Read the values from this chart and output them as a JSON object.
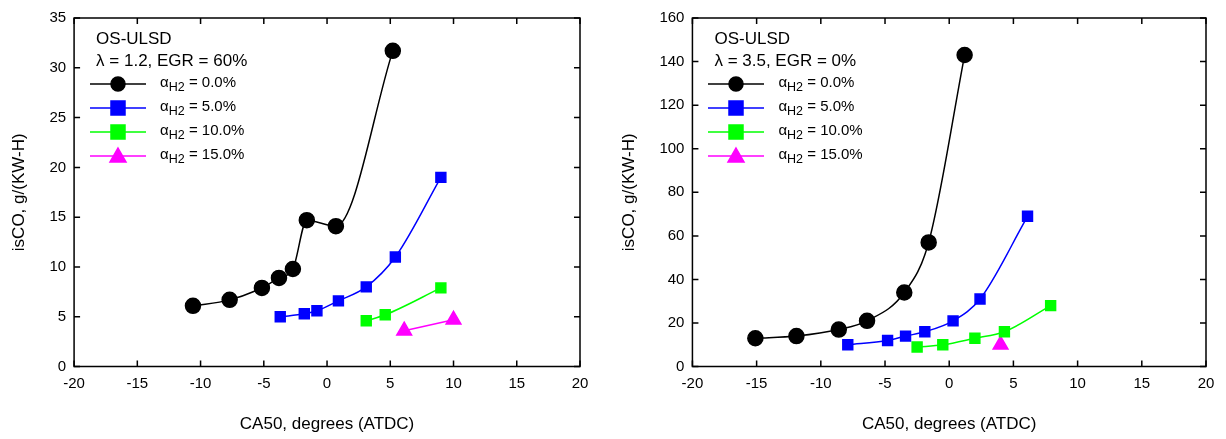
{
  "chart_data": [
    {
      "type": "line",
      "title": "OS-ULSD",
      "subtitle": "λ = 1.2, EGR = 60%",
      "xlabel": "CA50, degrees (ATDC)",
      "ylabel": "isCO, g/(KW-H)",
      "xlim": [
        -20,
        20
      ],
      "xticks": [
        -20,
        -15,
        -10,
        -5,
        0,
        5,
        10,
        15,
        20
      ],
      "ylim": [
        0,
        35
      ],
      "yticks": [
        0,
        5,
        10,
        15,
        20,
        25,
        30,
        35
      ],
      "grid": false,
      "legend": "top left",
      "line_style": "solid",
      "series": [
        {
          "name": "α$_{H2}$ = 0.0%",
          "color": "#000000",
          "marker": "circle",
          "x": [
            -10.6,
            -7.7,
            -5.15,
            -3.8,
            -2.7,
            -1.6,
            0.7,
            5.2
          ],
          "values": [
            6.1,
            6.7,
            7.9,
            8.9,
            9.8,
            14.7,
            14.1,
            31.7
          ]
        },
        {
          "name": "α$_{H2}$ = 5.0%",
          "color": "#0000ff",
          "marker": "square",
          "x": [
            -3.7,
            -1.8,
            -0.8,
            0.9,
            3.1,
            5.4,
            9.0
          ],
          "values": [
            5.0,
            5.3,
            5.6,
            6.6,
            8.0,
            11.0,
            19.0
          ]
        },
        {
          "name": "α$_{H2}$ = 10.0%",
          "color": "#00ff00",
          "marker": "square",
          "x": [
            3.1,
            4.6,
            9.0
          ],
          "values": [
            4.6,
            5.2,
            7.9
          ]
        },
        {
          "name": "α$_{H2}$ = 15.0%",
          "color": "#ff00ff",
          "marker": "triangle",
          "x": [
            6.1,
            10.0
          ],
          "values": [
            3.6,
            4.7
          ]
        }
      ]
    },
    {
      "type": "line",
      "title": "OS-ULSD",
      "subtitle": "λ = 3.5, EGR = 0%",
      "xlabel": "CA50, degrees (ATDC)",
      "ylabel": "isCO, g/(KW-H)",
      "xlim": [
        -20,
        20
      ],
      "xticks": [
        -20,
        -15,
        -10,
        -5,
        0,
        5,
        10,
        15,
        20
      ],
      "ylim": [
        0,
        160
      ],
      "yticks": [
        0,
        20,
        40,
        60,
        80,
        100,
        120,
        140,
        160
      ],
      "grid": false,
      "legend": "top left",
      "line_style": "solid",
      "series": [
        {
          "name": "α$_{H2}$ = 0.0%",
          "color": "#000000",
          "marker": "circle",
          "x": [
            -15.1,
            -11.9,
            -8.6,
            -6.4,
            -3.5,
            -1.6,
            1.2
          ],
          "values": [
            13,
            14,
            17,
            21,
            34,
            57,
            143
          ]
        },
        {
          "name": "α$_{H2}$ = 5.0%",
          "color": "#0000ff",
          "marker": "square",
          "x": [
            -7.9,
            -4.8,
            -3.4,
            -1.9,
            0.3,
            2.4,
            6.1
          ],
          "values": [
            10,
            12,
            14,
            16,
            21,
            31,
            69
          ]
        },
        {
          "name": "α$_{H2}$ = 10.0%",
          "color": "#00ff00",
          "marker": "square",
          "x": [
            -2.5,
            -0.5,
            2.0,
            4.3,
            7.9
          ],
          "values": [
            9,
            10,
            13,
            16,
            28
          ]
        },
        {
          "name": "α$_{H2}$ = 15.0%",
          "color": "#ff00ff",
          "marker": "triangle",
          "x": [
            4.0
          ],
          "values": [
            10
          ]
        }
      ]
    }
  ]
}
